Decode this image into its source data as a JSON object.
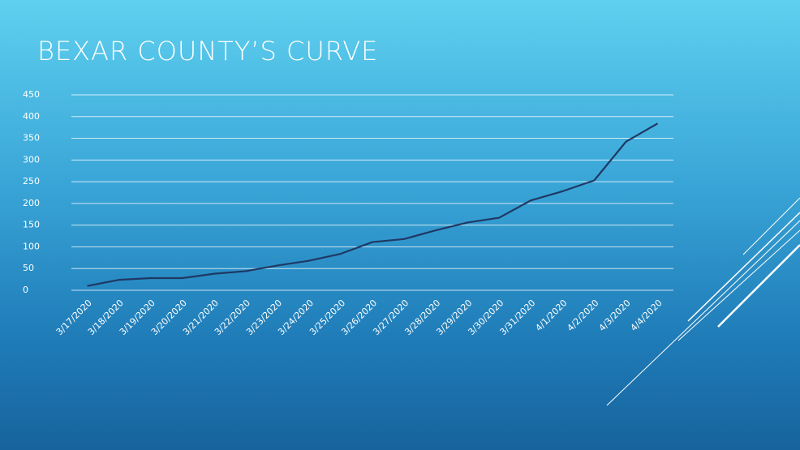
{
  "chart_data": {
    "type": "line",
    "title": "BEXAR COUNTY’S CURVE",
    "categories": [
      "3/17/2020",
      "3/18/2020",
      "3/19/2020",
      "3/20/2020",
      "3/21/2020",
      "3/22/2020",
      "3/23/2020",
      "3/24/2020",
      "3/25/2020",
      "3/26/2020",
      "3/27/2020",
      "3/28/2020",
      "3/29/2020",
      "3/30/2020",
      "3/31/2020",
      "4/1/2020",
      "4/2/2020",
      "4/3/2020",
      "4/4/2020"
    ],
    "values": [
      10,
      24,
      28,
      28,
      38,
      44,
      57,
      68,
      84,
      111,
      118,
      138,
      156,
      167,
      207,
      228,
      253,
      342,
      384
    ],
    "color": "#1f3864",
    "ylim": [
      0,
      450
    ],
    "yticks": [
      0,
      50,
      100,
      150,
      200,
      250,
      300,
      350,
      400,
      450
    ],
    "grid": true
  }
}
